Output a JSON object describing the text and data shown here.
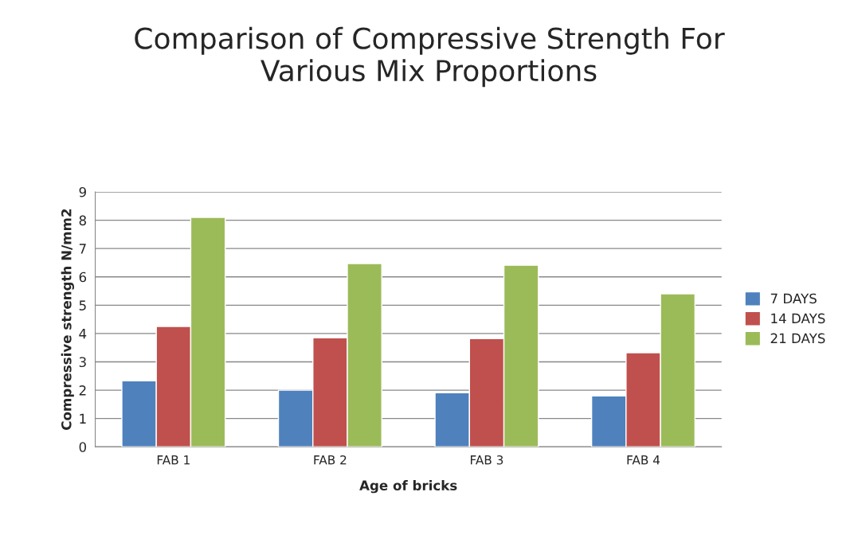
{
  "chart_data": {
    "type": "bar",
    "title": "Comparison of Compressive Strength For\nVarious Mix Proportions",
    "xlabel": "Age of bricks",
    "ylabel": "Compressive strength N/mm2",
    "categories": [
      "FAB 1",
      "FAB 2",
      "FAB 3",
      "FAB 4"
    ],
    "series": [
      {
        "name": "7 DAYS",
        "color": "#4f81bd",
        "values": [
          2.33,
          2.0,
          1.91,
          1.8
        ]
      },
      {
        "name": "14 DAYS",
        "color": "#c0504d",
        "values": [
          4.25,
          3.85,
          3.82,
          3.32
        ]
      },
      {
        "name": "21 DAYS",
        "color": "#9bbb59",
        "values": [
          8.1,
          6.47,
          6.41,
          5.4
        ]
      }
    ],
    "ylim": [
      0,
      9
    ],
    "yticks": [
      0,
      1,
      2,
      3,
      4,
      5,
      6,
      7,
      8,
      9
    ],
    "grid": "y",
    "legend": "right"
  }
}
